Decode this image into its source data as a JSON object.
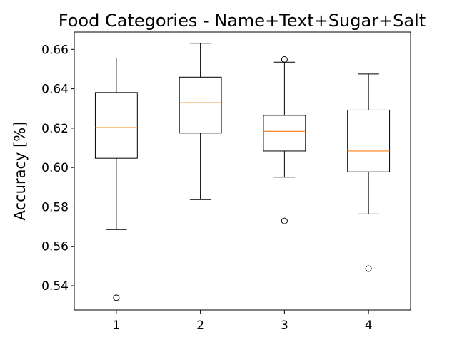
{
  "chart_data": {
    "type": "box",
    "title": "Food Categories - Name+Text+Sugar+Salt",
    "xlabel": "",
    "ylabel": "Accuracy [%]",
    "ylim": [
      0.5277,
      0.6688
    ],
    "xlim": [
      0.5,
      4.5
    ],
    "categories": [
      "1",
      "2",
      "3",
      "4"
    ],
    "yticks": [
      0.54,
      0.56,
      0.58,
      0.6,
      0.62,
      0.64,
      0.66
    ],
    "ytick_labels": [
      "0.54",
      "0.56",
      "0.58",
      "0.60",
      "0.62",
      "0.64",
      "0.66"
    ],
    "grid": false,
    "boxes": [
      {
        "label": "1",
        "whisker_low": 0.5685,
        "q1": 0.6047,
        "median": 0.6203,
        "q3": 0.6381,
        "whisker_high": 0.6556,
        "outliers": [
          0.5339
        ]
      },
      {
        "label": "2",
        "whisker_low": 0.5837,
        "q1": 0.6175,
        "median": 0.6329,
        "q3": 0.6459,
        "whisker_high": 0.6631,
        "outliers": []
      },
      {
        "label": "3",
        "whisker_low": 0.5951,
        "q1": 0.6084,
        "median": 0.6184,
        "q3": 0.6265,
        "whisker_high": 0.6535,
        "outliers": [
          0.5729,
          0.6549
        ]
      },
      {
        "label": "4",
        "whisker_low": 0.5764,
        "q1": 0.5978,
        "median": 0.6084,
        "q3": 0.6292,
        "whisker_high": 0.6475,
        "outliers": [
          0.5487
        ]
      }
    ],
    "colors": {
      "box": "#000000",
      "median": "#ff7f0e",
      "axes": "#000000"
    }
  }
}
